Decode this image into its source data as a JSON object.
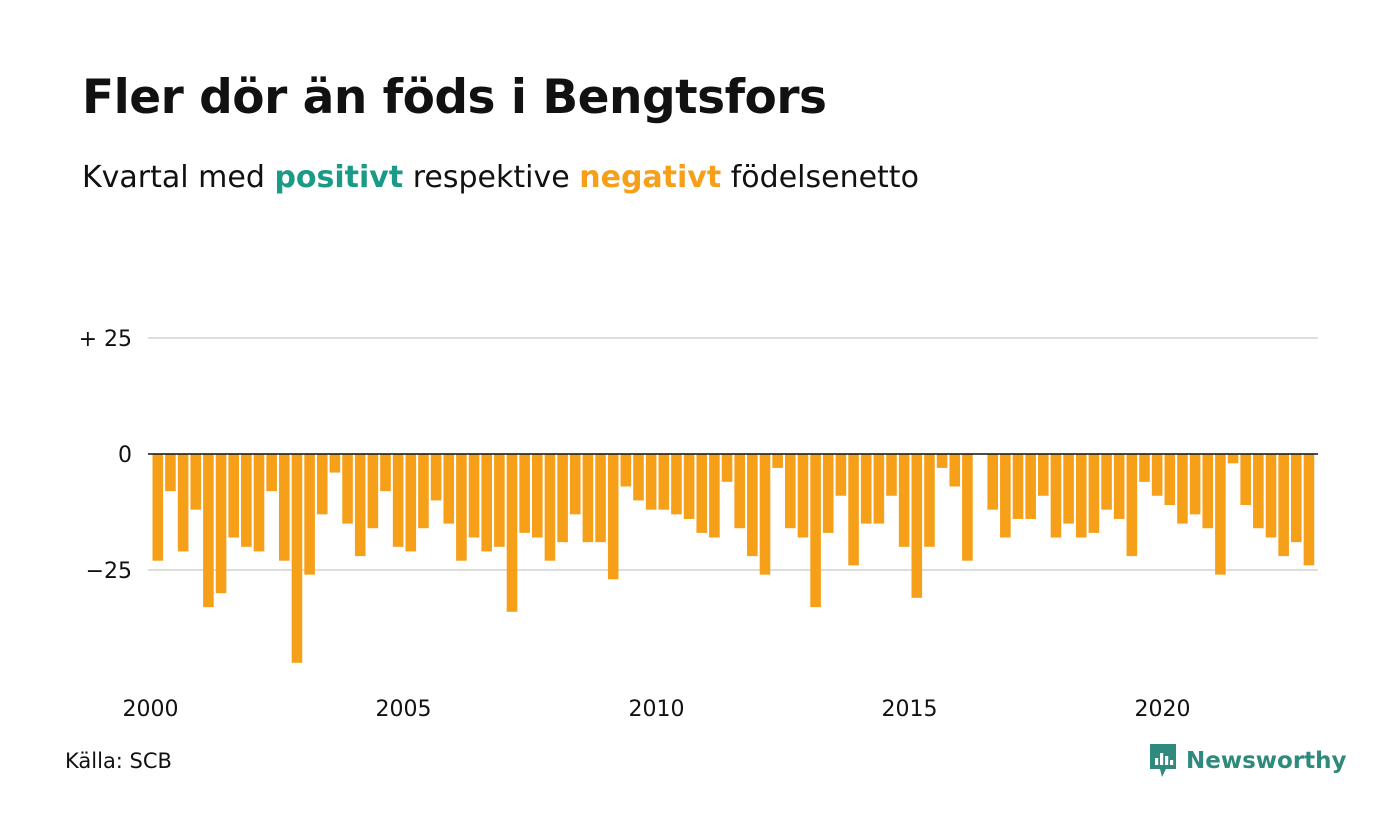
{
  "title": "Fler dör än föds i Bengtsfors",
  "subtitle": {
    "prefix": "Kvartal med",
    "positive_word": "positivt",
    "middle": "respektive",
    "negative_word": "negativt",
    "suffix": "födelsenetto"
  },
  "source": "Källa: SCB",
  "brand": "Newsworthy",
  "colors": {
    "positive": "#1a9a87",
    "negative": "#f6a01a",
    "grid": "#dddddd",
    "zero_line": "#111111",
    "brand": "#2f8a7d"
  },
  "chart_data": {
    "type": "bar",
    "title": "Fler dör än föds i Bengtsfors",
    "xlabel": "",
    "ylabel": "",
    "ylim": [
      -45,
      40
    ],
    "grid": true,
    "y_ticks": [
      {
        "value": 25,
        "label": "+ 25"
      },
      {
        "value": 0,
        "label": "0"
      },
      {
        "value": -25,
        "label": "−25"
      }
    ],
    "x_ticks": [
      {
        "value": 2000,
        "label": "2000"
      },
      {
        "value": 2005,
        "label": "2005"
      },
      {
        "value": 2010,
        "label": "2010"
      },
      {
        "value": 2015,
        "label": "2015"
      },
      {
        "value": 2020,
        "label": "2020"
      }
    ],
    "start_year": 2000,
    "periods_per_year": 4,
    "values": [
      -23,
      -8,
      -21,
      -12,
      -33,
      -30,
      -18,
      -20,
      -21,
      -8,
      -23,
      -45,
      -26,
      -13,
      -4,
      -15,
      -22,
      -16,
      -8,
      -20,
      -21,
      -16,
      -10,
      -15,
      -23,
      -18,
      -21,
      -20,
      -34,
      -17,
      -18,
      -23,
      -19,
      -13,
      -19,
      -19,
      -27,
      -7,
      -10,
      -12,
      -12,
      -13,
      -14,
      -17,
      -18,
      -6,
      -16,
      -22,
      -26,
      -3,
      -16,
      -18,
      -33,
      -17,
      -9,
      -24,
      -15,
      -15,
      -9,
      -20,
      -31,
      -20,
      -3,
      -7,
      -23,
      0,
      -12,
      -18,
      -14,
      -14,
      -9,
      -18,
      -15,
      -18,
      -17,
      -12,
      -14,
      -22,
      -6,
      -9,
      -11,
      -15,
      -13,
      -16,
      -26,
      -2,
      -11,
      -16,
      -18,
      -22,
      -19,
      -24
    ]
  }
}
